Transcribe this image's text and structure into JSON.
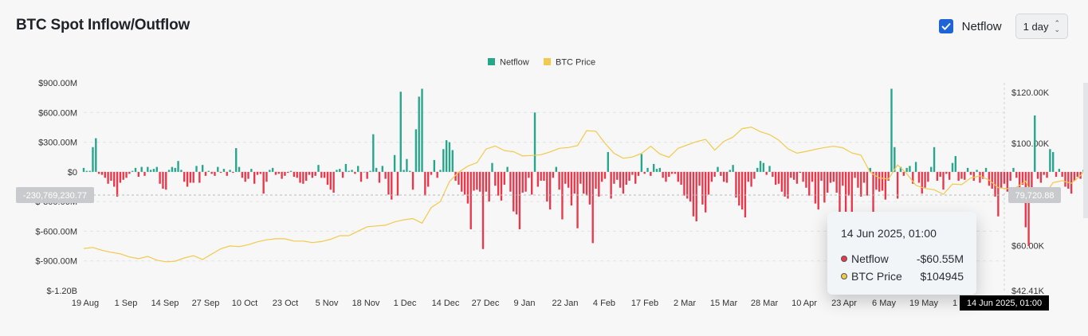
{
  "header": {
    "title": "BTC Spot Inflow/Outflow",
    "netflow_checkbox_label": "Netflow",
    "netflow_checked": true,
    "interval_select": "1 day"
  },
  "colors": {
    "positive": "#26a68b",
    "negative": "#e8394c",
    "price": "#f2c94c",
    "accent": "#1e64d8"
  },
  "tooltip": {
    "date": "14 Jun 2025, 01:00",
    "rows": [
      {
        "label": "Netflow",
        "value": "-$60.55M",
        "color": "#e8394c"
      },
      {
        "label": "BTC Price",
        "value": "$104945",
        "color": "#f2c94c"
      }
    ]
  },
  "crosshair": {
    "x_label": "14 Jun 2025, 01:00",
    "left_label": "-230,769,230.77",
    "right_label": "79,720.88"
  },
  "chart_data": {
    "type": "bar",
    "title": "BTC Spot Inflow/Outflow",
    "legend": [
      "Netflow",
      "BTC Price"
    ],
    "legend_position": "top-center",
    "grid": true,
    "x_ticks": [
      "19 Aug",
      "1 Sep",
      "14 Sep",
      "27 Sep",
      "10 Oct",
      "23 Oct",
      "5 Nov",
      "18 Nov",
      "1 Dec",
      "14 Dec",
      "27 Dec",
      "9 Jan",
      "22 Jan",
      "4 Feb",
      "17 Feb",
      "2 Mar",
      "15 Mar",
      "28 Mar",
      "10 Apr",
      "23 Apr",
      "6 May",
      "19 May",
      "1"
    ],
    "y_left_ticks": [
      "$900.00M",
      "$600.00M",
      "$300.00M",
      "$0",
      "$-300.00M",
      "$-600.00M",
      "$-900.00M",
      "$-1.20B"
    ],
    "y_left_range": [
      -1200,
      900
    ],
    "y_left_unit": "USD millions",
    "y_right_ticks": [
      "$120.00K",
      "$100.00K",
      "$60.00K",
      "$42.41K"
    ],
    "y_right_range": [
      42410,
      120000
    ],
    "series": [
      {
        "name": "Netflow",
        "axis": "left",
        "x_start": "2024-08-17",
        "x_step_days": 1,
        "values": [
          40,
          10,
          10,
          250,
          340,
          -20,
          -30,
          -60,
          -120,
          -90,
          -150,
          -250,
          -110,
          -80,
          -60,
          -20,
          10,
          40,
          -50,
          50,
          -40,
          50,
          20,
          30,
          50,
          -120,
          -170,
          -180,
          20,
          50,
          40,
          110,
          20,
          -100,
          -150,
          -110,
          -110,
          60,
          -110,
          70,
          -40,
          10,
          -20,
          -40,
          50,
          -10,
          30,
          -40,
          20,
          -10,
          240,
          50,
          -60,
          -100,
          -70,
          30,
          -120,
          -30,
          -20,
          -220,
          -100,
          20,
          40,
          -30,
          -20,
          -70,
          -40,
          -10,
          10,
          -50,
          -60,
          -110,
          -120,
          -90,
          -30,
          -60,
          -40,
          70,
          -60,
          -60,
          -130,
          -180,
          -210,
          20,
          30,
          -60,
          80,
          10,
          20,
          -20,
          60,
          -100,
          0,
          -70,
          10,
          380,
          40,
          -110,
          60,
          -70,
          -230,
          -280,
          170,
          -240,
          810,
          20,
          130,
          10,
          -180,
          430,
          760,
          840,
          -240,
          -150,
          -30,
          120,
          -60,
          20,
          230,
          320,
          300,
          220,
          -90,
          -130,
          -200,
          -230,
          -320,
          -580,
          -190,
          -180,
          -200,
          -780,
          -200,
          -300,
          90,
          -140,
          -240,
          -290,
          -130,
          50,
          -200,
          -400,
          -430,
          -580,
          -210,
          -200,
          -60,
          -230,
          600,
          -150,
          -90,
          -90,
          -300,
          -380,
          -60,
          50,
          -180,
          -480,
          -120,
          -160,
          -340,
          -220,
          -570,
          -120,
          -220,
          -240,
          -330,
          -720,
          -170,
          -250,
          -100,
          -70,
          200,
          -270,
          -120,
          -80,
          -160,
          -220,
          -130,
          -90,
          -30,
          -120,
          -40,
          180,
          -20,
          40,
          -40,
          80,
          30,
          40,
          -60,
          -100,
          -50,
          -20,
          -20,
          -100,
          -130,
          -240,
          -270,
          -300,
          -450,
          -500,
          -140,
          -330,
          -410,
          -230,
          -100,
          -50,
          50,
          -40,
          -100,
          -110,
          20,
          70,
          -260,
          -340,
          -380,
          -460,
          -100,
          -150,
          -70,
          40,
          110,
          90,
          -30,
          60,
          -50,
          -130,
          -120,
          -200,
          -250,
          -270,
          -60,
          -80,
          -120,
          -10,
          -100,
          -160,
          -240,
          -100,
          -320,
          -380,
          -90,
          -310,
          -210,
          -110,
          -100,
          -210,
          -610,
          -140,
          -500,
          -240,
          -560,
          -60,
          -160,
          -250,
          -110,
          -240,
          40,
          -1160,
          -180,
          -200,
          -190,
          -280,
          -90,
          840,
          250,
          -270,
          50,
          -40,
          40,
          60,
          -120,
          100,
          -110,
          -220,
          -160,
          -100,
          50,
          250,
          -90,
          -50,
          -180,
          -20,
          -80,
          90,
          160,
          -90,
          -70,
          -80,
          40,
          -30,
          -90,
          20,
          -110,
          -70,
          40,
          -140,
          -170,
          -250,
          -450,
          -160,
          -120,
          -200,
          -90,
          40,
          -60,
          -170,
          -130,
          -560,
          -750,
          -250,
          570,
          -70,
          -110,
          -30,
          -60,
          230,
          200,
          -50,
          30,
          -50,
          -150,
          -170,
          -220,
          -90,
          -50,
          -70,
          20,
          -30,
          -80,
          -180,
          -270,
          -130,
          30,
          20,
          380,
          -120,
          -150,
          300,
          -280,
          -190,
          -350,
          -260,
          -370,
          -150,
          -230,
          120,
          -500,
          -220,
          -80,
          -200,
          -350,
          -260,
          -80,
          -190,
          -210,
          -480,
          -110,
          -450,
          -240,
          230,
          -210,
          -140,
          240,
          -190,
          -270,
          -50,
          -110,
          -80,
          -440,
          -250,
          -30,
          -180,
          20,
          -280,
          -470,
          40,
          60,
          260,
          50,
          -90,
          -60
        ]
      },
      {
        "name": "BTC Price",
        "axis": "right",
        "x_start": "2024-08-17",
        "x_step_days": 3,
        "values": [
          58900,
          59300,
          58200,
          57400,
          56800,
          55600,
          54900,
          55800,
          54300,
          53700,
          53900,
          55200,
          56100,
          54600,
          56700,
          58800,
          59900,
          59600,
          60400,
          61500,
          62300,
          62700,
          62700,
          61800,
          61800,
          61200,
          61600,
          62500,
          63900,
          63900,
          65700,
          67400,
          67700,
          68000,
          69300,
          70100,
          70600,
          68800,
          74900,
          77300,
          85100,
          88700,
          91100,
          92500,
          97800,
          99000,
          97200,
          96800,
          95100,
          95300,
          95600,
          96700,
          98100,
          98400,
          99200,
          105000,
          104800,
          100100,
          96100,
          94200,
          94700,
          96100,
          98900,
          95900,
          94600,
          98100,
          99400,
          100700,
          101600,
          97400,
          100800,
          102500,
          105800,
          106400,
          104600,
          103500,
          101300,
          97900,
          96200,
          96900,
          97700,
          98400,
          98900,
          98300,
          96300,
          95400,
          88700,
          86500,
          86100,
          91600,
          88200,
          83600,
          82400,
          81900,
          80100,
          84100,
          83900,
          86500,
          87300,
          85700,
          82700,
          82300,
          82800,
          85300,
          76900,
          79300,
          84700,
          85400,
          84400,
          87400,
          92500,
          94300,
          94300,
          94700,
          96500,
          96900,
          97000,
          104100,
          103000,
          103500,
          102700,
          106600,
          107800,
          111700,
          108900,
          104700,
          105400,
          105800,
          104000,
          106200,
          107800,
          109700,
          108800,
          104900
        ]
      }
    ]
  }
}
